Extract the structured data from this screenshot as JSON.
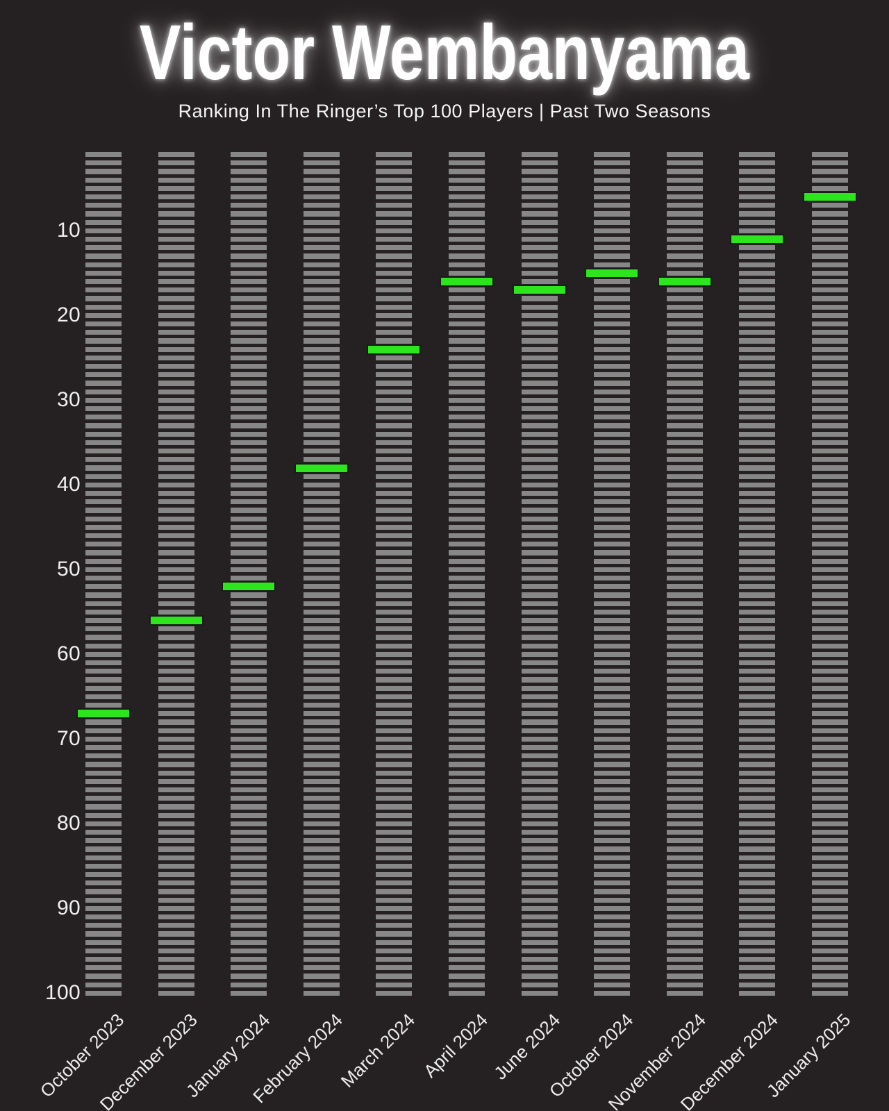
{
  "page": {
    "title": "Victor Wembanyama",
    "subtitle": "Ranking In The Ringer’s Top 100 Players | Past Two Seasons"
  },
  "colors": {
    "background": "#252021",
    "rung": "#878787",
    "marker": "#2de51c",
    "marker_border": "#1b1b1b",
    "axis_text": "#f0f0f0",
    "title_text": "#ffffff"
  },
  "chart_data": {
    "type": "scatter",
    "title": "Victor Wembanyama",
    "subtitle": "Ranking In The Ringer’s Top 100 Players | Past Two Seasons",
    "categories": [
      "October 2023",
      "December 2023",
      "January 2024",
      "February 2024",
      "March 2024",
      "April 2024",
      "June 2024",
      "October 2024",
      "November 2024",
      "December 2024",
      "January 2025"
    ],
    "values": [
      67,
      56,
      52,
      38,
      24,
      16,
      17,
      15,
      16,
      11,
      6
    ],
    "xlabel": "",
    "ylabel": "",
    "y_ticks": [
      10,
      20,
      30,
      40,
      50,
      60,
      70,
      80,
      90,
      100
    ],
    "ylim": [
      1,
      100
    ],
    "y_axis_inverted": true,
    "rungs_per_column": 100,
    "grid": false,
    "legend": "none"
  }
}
